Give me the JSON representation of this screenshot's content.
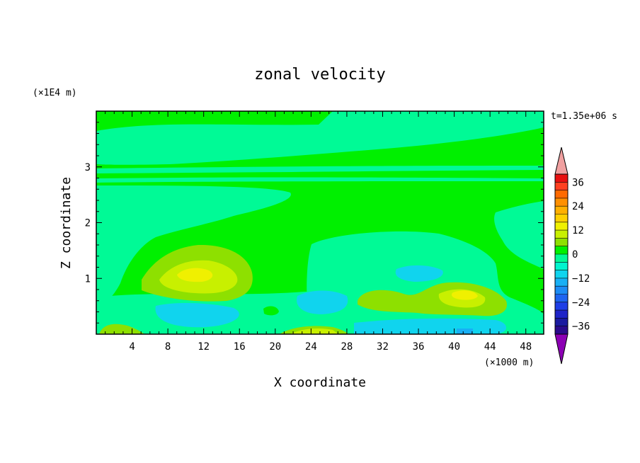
{
  "chart_data": {
    "type": "heatmap",
    "title": "zonal velocity",
    "xlabel": "X coordinate",
    "ylabel": "Z coordinate",
    "x_units": "(×1000 m)",
    "y_units": "(×1E4 m)",
    "time_label": "t=1.35e+06 s",
    "xlim": [
      0,
      50
    ],
    "ylim": [
      0,
      4
    ],
    "x_ticks": [
      4,
      8,
      12,
      16,
      20,
      24,
      28,
      32,
      36,
      40,
      44,
      48
    ],
    "x_tick_labels": [
      "4",
      "8",
      "12",
      "16",
      "20",
      "24",
      "28",
      "32",
      "36",
      "40",
      "44",
      "48"
    ],
    "y_ticks": [
      1,
      2,
      3
    ],
    "y_tick_labels": [
      "1",
      "2",
      "3"
    ],
    "colorbar": {
      "levels": [
        -40,
        -36,
        -32,
        -28,
        -24,
        -20,
        -16,
        -12,
        -8,
        -4,
        0,
        4,
        8,
        12,
        16,
        20,
        24,
        28,
        32,
        36,
        40
      ],
      "labeled_ticks": [
        36,
        24,
        12,
        0,
        -12,
        -24,
        -36
      ],
      "labels": [
        "36",
        "24",
        "12",
        "0",
        "−12",
        "−24",
        "−36"
      ],
      "colors": [
        "#2a0a8c",
        "#1a1aa0",
        "#1f24c8",
        "#1f3ee6",
        "#1e64f0",
        "#1c8cf5",
        "#18b0f5",
        "#10d4ee",
        "#00f5cf",
        "#00fa96",
        "#00f000",
        "#8ee000",
        "#c8f000",
        "#f0f000",
        "#ffd000",
        "#ffb000",
        "#ff9000",
        "#ff6a00",
        "#ff4020",
        "#e81010"
      ],
      "under_color": "#8c00b4",
      "over_color": "#f0a0a0"
    },
    "field_description_values": {
      "background": 2,
      "dominant_band_value": -3,
      "max_positive_core": 14,
      "min_negative_core": -14
    }
  }
}
